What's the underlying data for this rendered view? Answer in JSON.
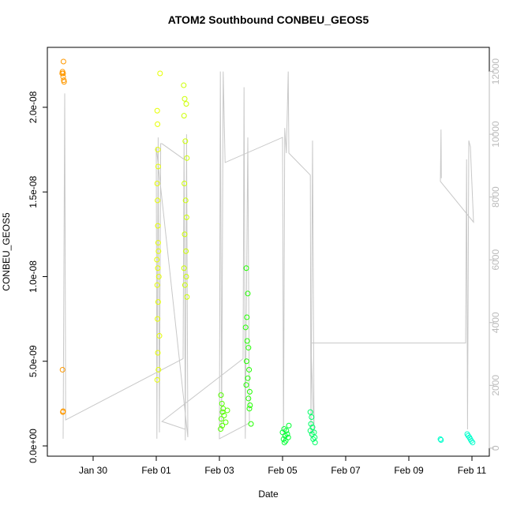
{
  "chart_data": {
    "type": "scatter",
    "title": "ATOM2 Southbound CONBEU_GEOS5",
    "xlabel": "Date",
    "ylabel": "CONBEU_GEOS5",
    "xlim": [
      28.55,
      42.55
    ],
    "xticks": [
      {
        "value": 30,
        "label": "Jan 30"
      },
      {
        "value": 32,
        "label": "Feb 01"
      },
      {
        "value": 34,
        "label": "Feb 03"
      },
      {
        "value": 36,
        "label": "Feb 05"
      },
      {
        "value": 38,
        "label": "Feb 07"
      },
      {
        "value": 40,
        "label": "Feb 09"
      },
      {
        "value": 42,
        "label": "Feb 11"
      }
    ],
    "ylim": [
      -6.06e-10,
      2.354e-08
    ],
    "yticks": [
      {
        "value": 0,
        "label": "0.0e+00"
      },
      {
        "value": 5e-09,
        "label": "5.0e-09"
      },
      {
        "value": 1e-08,
        "label": "1.0e-08"
      },
      {
        "value": 1.5e-08,
        "label": "1.5e-08"
      },
      {
        "value": 2e-08,
        "label": "2.0e-08"
      }
    ],
    "y2lim": [
      -256,
      12769
    ],
    "y2ticks": [
      0,
      2000,
      4000,
      6000,
      8000,
      10000,
      12000
    ],
    "y2color": "#bbbbbb",
    "series": [
      {
        "color": "#ff9900",
        "x": [
          29.02,
          29.03,
          29.05,
          29.06,
          29.07,
          29.08,
          29.05,
          29.03,
          29.04,
          29.05
        ],
        "values": [
          2.2e-08,
          2.21e-08,
          2.18e-08,
          2.27e-08,
          2.16e-08,
          2.15e-08,
          2.2e-08,
          4.5e-09,
          2e-09,
          2.05e-09
        ]
      },
      {
        "color": "#e6ff00",
        "x": [
          32.12,
          32.03,
          32.04,
          32.05,
          32.06,
          32.03,
          32.04,
          32.05,
          32.06,
          32.07,
          32.02,
          32.05,
          32.08,
          32.03,
          32.06,
          32.04,
          32.1,
          32.05,
          32.07,
          32.03
        ],
        "values": [
          2.2e-08,
          1.98e-08,
          1.9e-08,
          1.75e-08,
          1.65e-08,
          1.55e-08,
          1.45e-08,
          1.3e-08,
          1.2e-08,
          1.15e-08,
          1.1e-08,
          1.05e-08,
          1e-08,
          9.5e-09,
          8.5e-09,
          7.5e-09,
          6.5e-09,
          5.5e-09,
          4.5e-09,
          3.9e-09
        ]
      },
      {
        "color": "#ccff00",
        "x": [
          32.87,
          32.9,
          32.95,
          32.88,
          32.92,
          32.97,
          32.89,
          32.93,
          32.96,
          32.9,
          32.94,
          32.88,
          32.95,
          32.91,
          32.97
        ],
        "values": [
          2.13e-08,
          2.05e-08,
          2.02e-08,
          1.95e-08,
          1.8e-08,
          1.7e-08,
          1.55e-08,
          1.45e-08,
          1.35e-08,
          1.25e-08,
          1.15e-08,
          1.05e-08,
          1e-08,
          9.5e-09,
          8.8e-09
        ]
      },
      {
        "color": "#55ff00",
        "x": [
          34.05,
          34.08,
          34.12,
          34.1,
          34.15,
          34.06,
          34.2,
          34.09,
          34.04,
          34.25
        ],
        "values": [
          3e-09,
          2.5e-09,
          2.2e-09,
          2e-09,
          1.8e-09,
          1.6e-09,
          1.4e-09,
          1.2e-09,
          1e-09,
          2.1e-09
        ]
      },
      {
        "color": "#22ff00",
        "x": [
          34.85,
          34.9,
          34.87,
          34.83,
          34.88,
          34.92,
          34.86,
          34.94,
          34.9,
          34.85,
          34.96,
          34.92,
          34.97,
          34.95,
          35.0
        ],
        "values": [
          1.05e-08,
          9e-09,
          7.6e-09,
          7e-09,
          6.2e-09,
          5.8e-09,
          5e-09,
          4.5e-09,
          4e-09,
          3.6e-09,
          3.2e-09,
          2.8e-09,
          2.4e-09,
          2.2e-09,
          1.3e-09
        ]
      },
      {
        "color": "#00ff33",
        "x": [
          36.2,
          36.05,
          36.12,
          36.0,
          36.15,
          36.08,
          36.18,
          36.03,
          36.1,
          36.06
        ],
        "values": [
          1.2e-09,
          1e-09,
          9e-10,
          8e-10,
          7e-10,
          6e-10,
          5e-10,
          4e-10,
          3e-10,
          2e-10
        ]
      },
      {
        "color": "#00ff66",
        "x": [
          36.88,
          36.92,
          36.9,
          36.95,
          36.88,
          37.0,
          36.93,
          37.02,
          36.97,
          37.03
        ],
        "values": [
          2e-09,
          1.7e-09,
          1.3e-09,
          1.1e-09,
          9e-10,
          8e-10,
          7e-10,
          5e-10,
          4e-10,
          2e-10
        ]
      },
      {
        "color": "#00ffcc",
        "x": [
          41.0,
          41.02,
          41.85,
          41.88,
          41.92,
          41.95,
          41.98,
          42.02
        ],
        "values": [
          4e-10,
          3.5e-10,
          7e-10,
          6e-10,
          5e-10,
          4e-10,
          3e-10,
          2e-10
        ]
      },
      {
        "color": "#c8c8c8",
        "axis": "y2",
        "x": [
          29.05,
          29.1,
          29.13,
          32.85,
          32.88,
          32.92,
          32.96,
          33.0,
          32.0,
          32.02,
          32.06,
          32.1,
          32.14,
          32.18,
          32.88,
          32.92,
          32.18,
          34.75,
          34.78,
          34.82,
          34.9,
          34.95,
          34.0,
          34.03,
          34.07,
          34.12,
          34.18,
          36.0,
          36.03,
          36.07,
          36.12,
          36.18,
          36.2,
          36.88,
          36.9,
          36.95,
          37.0,
          36.9,
          41.8,
          41.83,
          41.86,
          41.9,
          41.95,
          42.05,
          41.0,
          41.02,
          41.03
        ],
        "values": [
          300,
          11300,
          900,
          2850,
          9800,
          250,
          10000,
          350,
          9600,
          300,
          9900,
          500,
          9700,
          9700,
          9200,
          600,
          850,
          2850,
          11500,
          300,
          9900,
          800,
          300,
          12000,
          600,
          12000,
          9100,
          9900,
          300,
          10200,
          9400,
          12000,
          9400,
          8700,
          300,
          9800,
          400,
          3350,
          3350,
          9200,
          600,
          9800,
          9600,
          7200,
          8500,
          10150,
          8600
        ]
      }
    ]
  }
}
